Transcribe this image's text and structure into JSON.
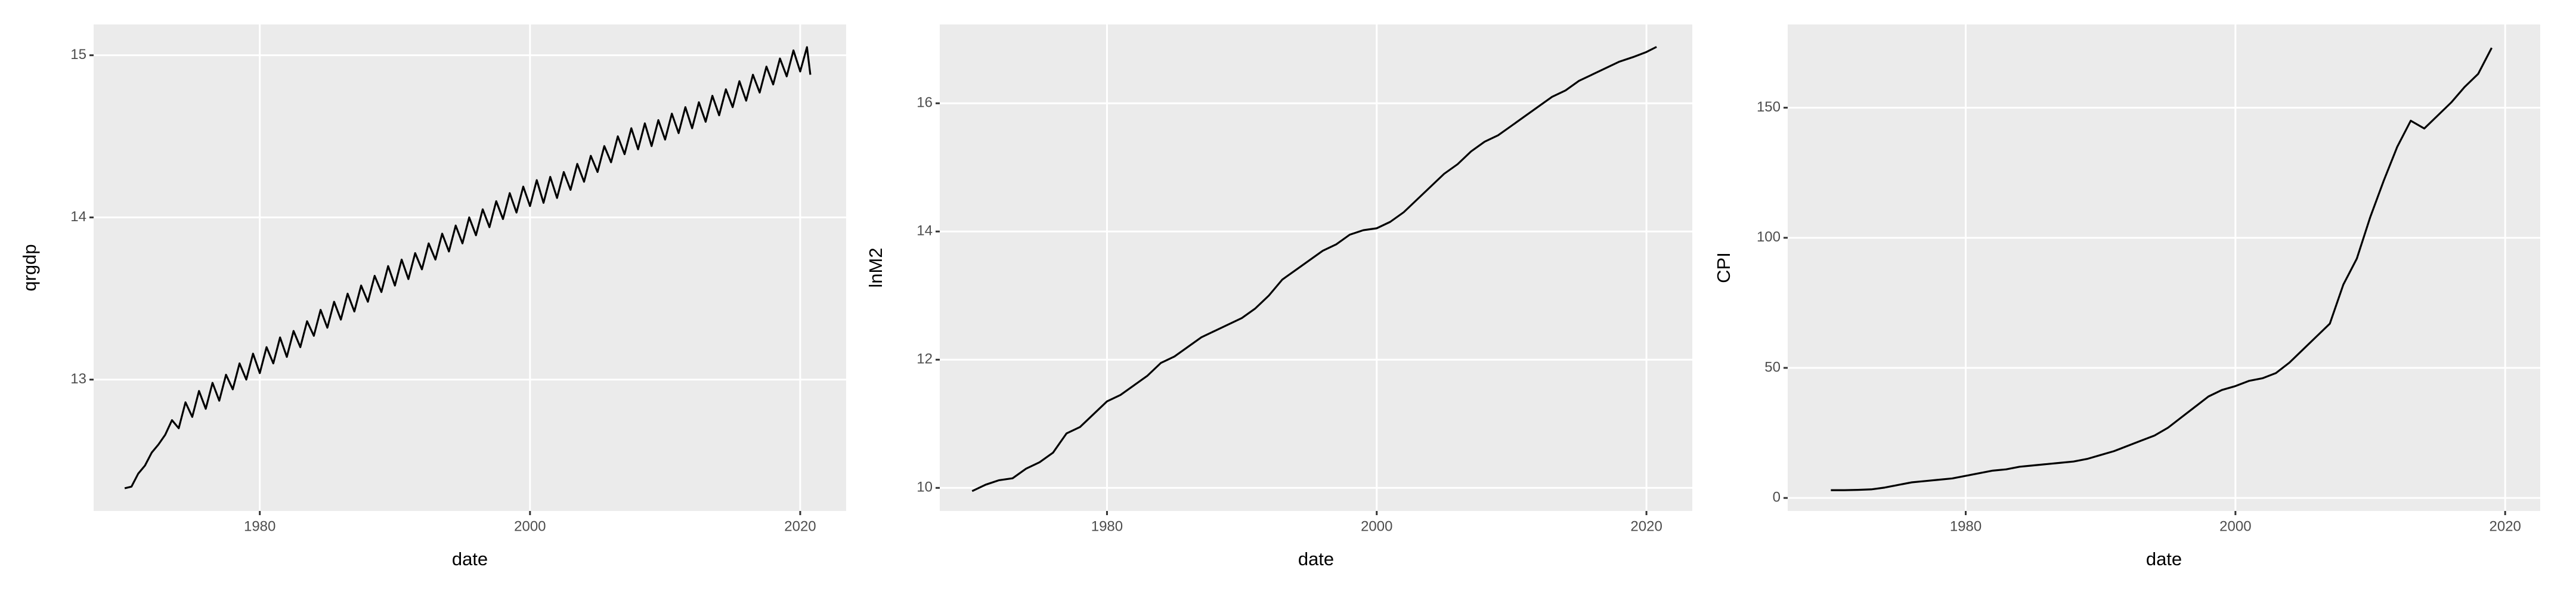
{
  "chart_data": [
    {
      "type": "line",
      "x_label": "date",
      "y_label": "qrgdp",
      "color": "#000000",
      "grid": true,
      "xlim": [
        1967.7,
        2023.4
      ],
      "xticks": [
        1980,
        2000,
        2020
      ],
      "ylim": [
        12.19,
        15.19
      ],
      "yticks": [
        13,
        14,
        15
      ],
      "series": [
        {
          "name": "qrgdp",
          "x": [
            1970,
            1970.5,
            1971,
            1971.5,
            1972,
            1972.5,
            1973,
            1973.5,
            1974,
            1974.5,
            1975,
            1975.5,
            1976,
            1976.5,
            1977,
            1977.5,
            1978,
            1978.5,
            1979,
            1979.5,
            1980,
            1980.5,
            1981,
            1981.5,
            1982,
            1982.5,
            1983,
            1983.5,
            1984,
            1984.5,
            1985,
            1985.5,
            1986,
            1986.5,
            1987,
            1987.5,
            1988,
            1988.5,
            1989,
            1989.5,
            1990,
            1990.5,
            1991,
            1991.5,
            1992,
            1992.5,
            1993,
            1993.5,
            1994,
            1994.5,
            1995,
            1995.5,
            1996,
            1996.5,
            1997,
            1997.5,
            1998,
            1998.5,
            1999,
            1999.5,
            2000,
            2000.5,
            2001,
            2001.5,
            2002,
            2002.5,
            2003,
            2003.5,
            2004,
            2004.5,
            2005,
            2005.5,
            2006,
            2006.5,
            2007,
            2007.5,
            2008,
            2008.5,
            2009,
            2009.5,
            2010,
            2010.5,
            2011,
            2011.5,
            2012,
            2012.5,
            2013,
            2013.5,
            2014,
            2014.5,
            2015,
            2015.5,
            2016,
            2016.5,
            2017,
            2017.5,
            2018,
            2018.5,
            2019,
            2019.5,
            2020,
            2020.5,
            2020.75
          ],
          "values": [
            12.33,
            12.34,
            12.42,
            12.47,
            12.55,
            12.6,
            12.66,
            12.75,
            12.7,
            12.86,
            12.77,
            12.93,
            12.82,
            12.98,
            12.87,
            13.03,
            12.94,
            13.1,
            13.0,
            13.16,
            13.04,
            13.2,
            13.1,
            13.26,
            13.14,
            13.3,
            13.2,
            13.36,
            13.27,
            13.43,
            13.32,
            13.48,
            13.37,
            13.53,
            13.42,
            13.58,
            13.48,
            13.64,
            13.54,
            13.7,
            13.58,
            13.74,
            13.62,
            13.78,
            13.68,
            13.84,
            13.74,
            13.9,
            13.79,
            13.95,
            13.84,
            14.0,
            13.89,
            14.05,
            13.94,
            14.1,
            13.99,
            14.15,
            14.03,
            14.19,
            14.07,
            14.23,
            14.09,
            14.25,
            14.12,
            14.28,
            14.17,
            14.33,
            14.22,
            14.38,
            14.28,
            14.44,
            14.34,
            14.5,
            14.39,
            14.55,
            14.42,
            14.58,
            14.44,
            14.6,
            14.48,
            14.64,
            14.52,
            14.68,
            14.55,
            14.71,
            14.59,
            14.75,
            14.63,
            14.79,
            14.68,
            14.84,
            14.72,
            14.88,
            14.77,
            14.93,
            14.82,
            14.98,
            14.87,
            15.03,
            14.9,
            15.05,
            14.88
          ]
        }
      ]
    },
    {
      "type": "line",
      "x_label": "date",
      "y_label": "lnM2",
      "color": "#000000",
      "grid": true,
      "xlim": [
        1967.6,
        2023.4
      ],
      "xticks": [
        1980,
        2000,
        2020
      ],
      "ylim": [
        9.64,
        17.23
      ],
      "yticks": [
        10,
        12,
        14,
        16
      ],
      "series": [
        {
          "name": "lnM2",
          "x": [
            1970,
            1971,
            1972,
            1973,
            1974,
            1975,
            1976,
            1977,
            1978,
            1979,
            1980,
            1981,
            1982,
            1983,
            1984,
            1985,
            1986,
            1987,
            1988,
            1989,
            1990,
            1991,
            1992,
            1993,
            1994,
            1995,
            1996,
            1997,
            1998,
            1999,
            2000,
            2001,
            2002,
            2003,
            2004,
            2005,
            2006,
            2007,
            2008,
            2009,
            2010,
            2011,
            2012,
            2013,
            2014,
            2015,
            2016,
            2017,
            2018,
            2019,
            2020,
            2020.75
          ],
          "values": [
            9.95,
            10.05,
            10.12,
            10.15,
            10.3,
            10.4,
            10.55,
            10.85,
            10.95,
            11.15,
            11.35,
            11.45,
            11.6,
            11.75,
            11.95,
            12.05,
            12.2,
            12.35,
            12.45,
            12.55,
            12.65,
            12.8,
            13.0,
            13.25,
            13.4,
            13.55,
            13.7,
            13.8,
            13.95,
            14.02,
            14.05,
            14.15,
            14.3,
            14.5,
            14.7,
            14.9,
            15.05,
            15.25,
            15.4,
            15.5,
            15.65,
            15.8,
            15.95,
            16.1,
            16.2,
            16.35,
            16.45,
            16.55,
            16.65,
            16.72,
            16.8,
            16.88
          ]
        }
      ]
    },
    {
      "type": "line",
      "x_label": "date",
      "y_label": "CPI",
      "color": "#000000",
      "grid": true,
      "xlim": [
        1966.8,
        2022.6
      ],
      "xticks": [
        1980,
        2000,
        2020
      ],
      "ylim": [
        -5,
        182
      ],
      "yticks": [
        0,
        50,
        100,
        150
      ],
      "series": [
        {
          "name": "CPI",
          "x": [
            1970,
            1971,
            1972,
            1973,
            1974,
            1975,
            1976,
            1977,
            1978,
            1979,
            1980,
            1981,
            1982,
            1983,
            1984,
            1985,
            1986,
            1987,
            1988,
            1989,
            1990,
            1991,
            1992,
            1993,
            1994,
            1995,
            1996,
            1997,
            1998,
            1999,
            2000,
            2001,
            2002,
            2003,
            2004,
            2005,
            2006,
            2007,
            2008,
            2009,
            2010,
            2011,
            2012,
            2013,
            2014,
            2015,
            2016,
            2017,
            2018,
            2019
          ],
          "values": [
            3,
            3,
            3.1,
            3.3,
            4,
            5,
            6,
            6.5,
            7,
            7.5,
            8.5,
            9.5,
            10.5,
            11,
            12,
            12.5,
            13,
            13.5,
            14,
            15,
            16.5,
            18,
            20,
            22,
            24,
            27,
            31,
            35,
            39,
            41.5,
            43,
            45,
            46,
            48,
            52,
            57,
            62,
            67,
            82,
            92,
            108,
            122,
            135,
            145,
            142,
            147,
            152,
            158,
            163,
            173
          ]
        }
      ]
    }
  ]
}
